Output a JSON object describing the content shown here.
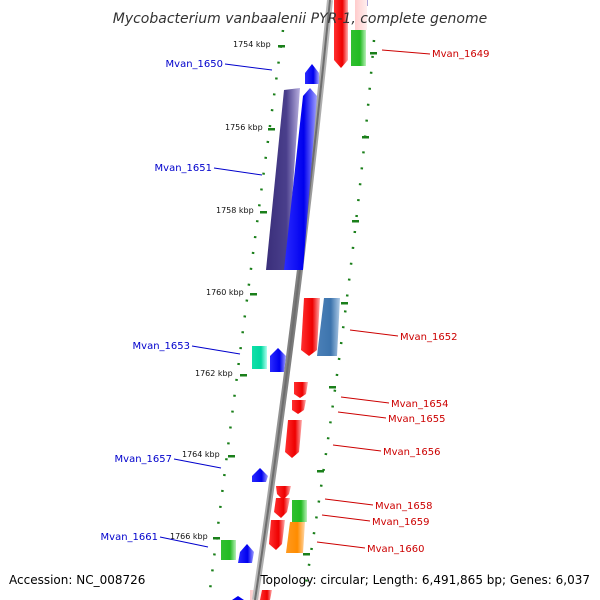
{
  "title": "Mycobacterium vanbaalenii PYR-1, complete genome",
  "footer": {
    "accession": "Accession: NC_008726",
    "summary": "Topology: circular; Length: 6,491,865 bp; Genes: 6,037"
  },
  "colors": {
    "backbone": "#8a8a8a",
    "tick": "#1a7f1a",
    "left_label": "#0000cc",
    "right_label": "#cc0000"
  },
  "tick_labels": [
    "1754 kbp",
    "1756 kbp",
    "1758 kbp",
    "1760 kbp",
    "1762 kbp",
    "1764 kbp",
    "1766 kbp"
  ],
  "gene_labels_left": [
    "Mvan_1650",
    "Mvan_1651",
    "Mvan_1653",
    "Mvan_1657",
    "Mvan_1661"
  ],
  "gene_labels_right": [
    "Mvan_1649",
    "Mvan_1652",
    "Mvan_1654",
    "Mvan_1655",
    "Mvan_1656",
    "Mvan_1658",
    "Mvan_1659",
    "Mvan_1660"
  ]
}
